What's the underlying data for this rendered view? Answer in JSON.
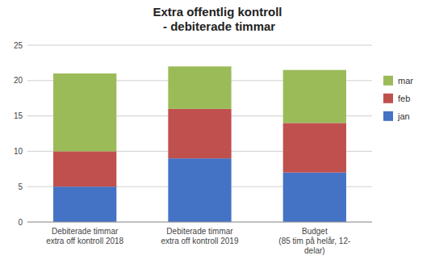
{
  "chart_data": {
    "type": "bar",
    "stacked": true,
    "title": "Extra offentlig kontroll\n - debiterade timmar",
    "categories": [
      "Debiterade timmar\nextra off kontroll 2018",
      "Debiterade timmar\nextra off kontroll 2019",
      "Budget\n(85 tim på helår, 12-\ndelar)"
    ],
    "series": [
      {
        "name": "jan",
        "color": "#4472C4",
        "values": [
          5,
          9,
          7
        ]
      },
      {
        "name": "feb",
        "color": "#C0504D",
        "values": [
          5,
          7,
          7
        ]
      },
      {
        "name": "mar",
        "color": "#9BBB59",
        "values": [
          11,
          6,
          7.5
        ]
      }
    ],
    "ylim": [
      0,
      25
    ],
    "yticks": [
      0,
      5,
      10,
      15,
      20,
      25
    ],
    "grid": true,
    "legend": "right"
  }
}
